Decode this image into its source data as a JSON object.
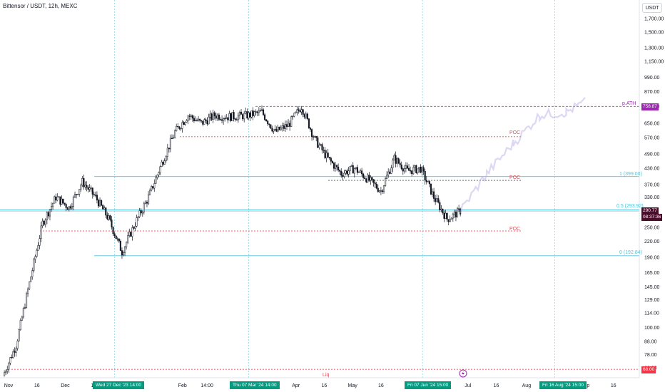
{
  "header": {
    "title": "Bittensor / USDT, 12h, MEXC",
    "currency": "USDT"
  },
  "colors": {
    "up": "#131722",
    "teal_line": "#4fc3d9",
    "poc_red": "#e0515a",
    "purple_label": "#9c27b0",
    "last_price_bg": "#4a0d2a",
    "crosshair_badge": "#089981",
    "liq_bg": "#f23645"
  },
  "price_axis": {
    "ticks": [
      "1,700.00",
      "1,500.00",
      "1,300.00",
      "1,150.00",
      "990.00",
      "870.00",
      "760.00",
      "650.00",
      "570.00",
      "490.00",
      "430.00",
      "370.00",
      "330.00",
      "280.00",
      "250.00",
      "220.00",
      "190.00",
      "165.00",
      "145.00",
      "129.00",
      "114.00",
      "100.00",
      "88.00",
      "78.00",
      "69.00"
    ]
  },
  "time_axis": {
    "ticks": [
      "Nov",
      "16",
      "Dec",
      "16",
      "Feb",
      "14:00",
      "Apr",
      "16",
      "May",
      "16",
      "Jul",
      "16",
      "Aug",
      "Sep",
      "16"
    ]
  },
  "price_badges": {
    "ath": "758.87",
    "last_price": "290.77",
    "countdown": "08:37:36",
    "liq": "68.00"
  },
  "time_badges": {
    "d1": "Wed 27 Dec '23   14:00",
    "d2": "Thu 07 Mar '24   14:00",
    "d3": "Fri 07 Jun '24   15:00",
    "d4": "Fri 16 Aug '24   15:00"
  },
  "annotations": {
    "pATH": "p.ATH",
    "poc1": "POC",
    "poc2": "POC",
    "poc3": "POC",
    "fib1": "1 (399.00)",
    "fib05": "0.5 (293.92)",
    "fib0": "0 (192.84)",
    "liq": "Liq"
  },
  "chart_data": {
    "type": "candlestick",
    "title": "Bittensor / USDT, 12h, MEXC",
    "y_scale": "log",
    "ylim": [
      60,
      1800
    ],
    "x_range": [
      "Oct 2023",
      "Sep 2024"
    ],
    "levels": [
      {
        "label": "p.ATH",
        "value": 758.87
      },
      {
        "label": "POC",
        "value": 575
      },
      {
        "label": "POC",
        "value": 385
      },
      {
        "label": "POC",
        "value": 242
      },
      {
        "label": "1 (399.00)",
        "value": 399.0
      },
      {
        "label": "0.5 (293.92)",
        "value": 293.92
      },
      {
        "label": "0 (192.84)",
        "value": 192.84
      },
      {
        "label": "Liq",
        "value": 68.0
      }
    ],
    "close_path": [
      [
        "Oct 29",
        64
      ],
      [
        "Nov 05",
        85
      ],
      [
        "Nov 12",
        150
      ],
      [
        "Nov 19",
        260
      ],
      [
        "Nov 26",
        330
      ],
      [
        "Dec 03",
        300
      ],
      [
        "Dec 10",
        380
      ],
      [
        "Dec 17",
        330
      ],
      [
        "Dec 24",
        270
      ],
      [
        "Dec 31",
        200
      ],
      [
        "Jan 07",
        260
      ],
      [
        "Jan 14",
        330
      ],
      [
        "Jan 21",
        450
      ],
      [
        "Jan 28",
        600
      ],
      [
        "Feb 04",
        700
      ],
      [
        "Feb 11",
        650
      ],
      [
        "Feb 18",
        700
      ],
      [
        "Feb 25",
        690
      ],
      [
        "Mar 07",
        700
      ],
      [
        "Mar 14",
        720
      ],
      [
        "Mar 21",
        600
      ],
      [
        "Mar 28",
        640
      ],
      [
        "Apr 04",
        760
      ],
      [
        "Apr 11",
        560
      ],
      [
        "Apr 18",
        470
      ],
      [
        "Apr 25",
        410
      ],
      [
        "May 02",
        430
      ],
      [
        "May 09",
        390
      ],
      [
        "May 16",
        350
      ],
      [
        "May 23",
        470
      ],
      [
        "May 30",
        420
      ],
      [
        "Jun 06",
        430
      ],
      [
        "Jun 13",
        330
      ],
      [
        "Jun 20",
        270
      ],
      [
        "Jun 27",
        290.77
      ]
    ],
    "projection_path": [
      [
        "Jun 27",
        290.77
      ],
      [
        "Jul 11",
        410
      ],
      [
        "Jul 25",
        540
      ],
      [
        "Aug 08",
        700
      ],
      [
        "Aug 22",
        720
      ],
      [
        "Sep 01",
        790
      ]
    ],
    "last_price": 290.77
  }
}
